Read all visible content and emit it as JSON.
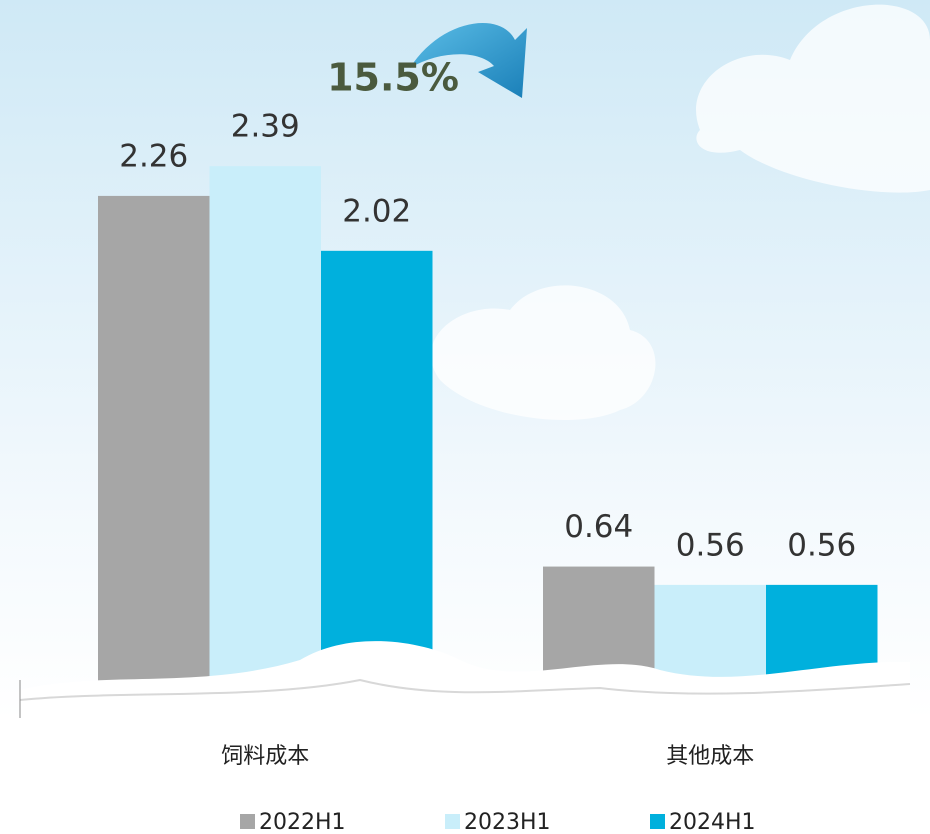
{
  "chart_data": {
    "type": "bar",
    "annotation": "15.5%",
    "categories": [
      "饲料成本",
      "其他成本"
    ],
    "series": [
      {
        "name": "2022H1",
        "color": "#a6a6a6",
        "values": [
          2.26,
          0.64
        ]
      },
      {
        "name": "2023H1",
        "color": "#c9eefa",
        "values": [
          2.39,
          0.56
        ]
      },
      {
        "name": "2024H1",
        "color": "#00b0dd",
        "values": [
          2.02,
          0.56
        ]
      }
    ],
    "ylim": [
      0,
      2.5
    ]
  }
}
